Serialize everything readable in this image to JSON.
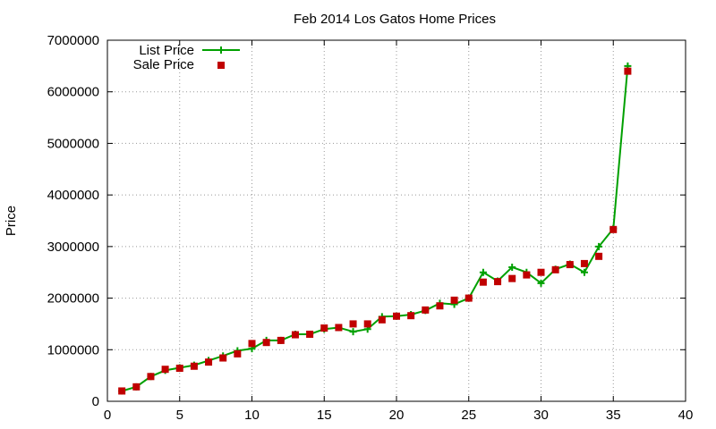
{
  "chart_data": {
    "type": "line",
    "title": "Feb 2014 Los Gatos Home Prices",
    "xlabel": "",
    "ylabel": "Price",
    "xlim": [
      0,
      40
    ],
    "ylim": [
      0,
      7000000
    ],
    "xticks": [
      0,
      5,
      10,
      15,
      20,
      25,
      30,
      35,
      40
    ],
    "yticks": [
      0,
      1000000,
      2000000,
      3000000,
      4000000,
      5000000,
      6000000,
      7000000
    ],
    "grid": true,
    "legend_position": "top-left",
    "series": [
      {
        "name": "List Price",
        "style": "line+plus",
        "color": "#00a000",
        "x": [
          1,
          2,
          3,
          4,
          5,
          6,
          7,
          8,
          9,
          10,
          11,
          12,
          13,
          14,
          15,
          16,
          17,
          18,
          19,
          20,
          21,
          22,
          23,
          24,
          25,
          26,
          27,
          28,
          29,
          30,
          31,
          32,
          33,
          34,
          35,
          36
        ],
        "values": [
          200000,
          280000,
          480000,
          600000,
          650000,
          700000,
          790000,
          880000,
          980000,
          1020000,
          1180000,
          1180000,
          1300000,
          1300000,
          1400000,
          1430000,
          1350000,
          1400000,
          1640000,
          1650000,
          1680000,
          1760000,
          1900000,
          1880000,
          2000000,
          2500000,
          2330000,
          2600000,
          2500000,
          2290000,
          2560000,
          2660000,
          2500000,
          3000000,
          3350000,
          6500000
        ]
      },
      {
        "name": "Sale Price",
        "style": "square",
        "color": "#c00000",
        "x": [
          1,
          2,
          3,
          4,
          5,
          6,
          7,
          8,
          9,
          10,
          11,
          12,
          13,
          14,
          15,
          16,
          17,
          18,
          19,
          20,
          21,
          22,
          23,
          24,
          25,
          26,
          27,
          28,
          29,
          30,
          31,
          32,
          33,
          34,
          35,
          36
        ],
        "values": [
          200000,
          280000,
          480000,
          620000,
          640000,
          680000,
          760000,
          840000,
          920000,
          1120000,
          1140000,
          1180000,
          1290000,
          1300000,
          1420000,
          1430000,
          1500000,
          1500000,
          1580000,
          1650000,
          1660000,
          1770000,
          1850000,
          1960000,
          2000000,
          2310000,
          2320000,
          2380000,
          2450000,
          2500000,
          2550000,
          2650000,
          2670000,
          2810000,
          3330000,
          6400000
        ]
      }
    ]
  }
}
